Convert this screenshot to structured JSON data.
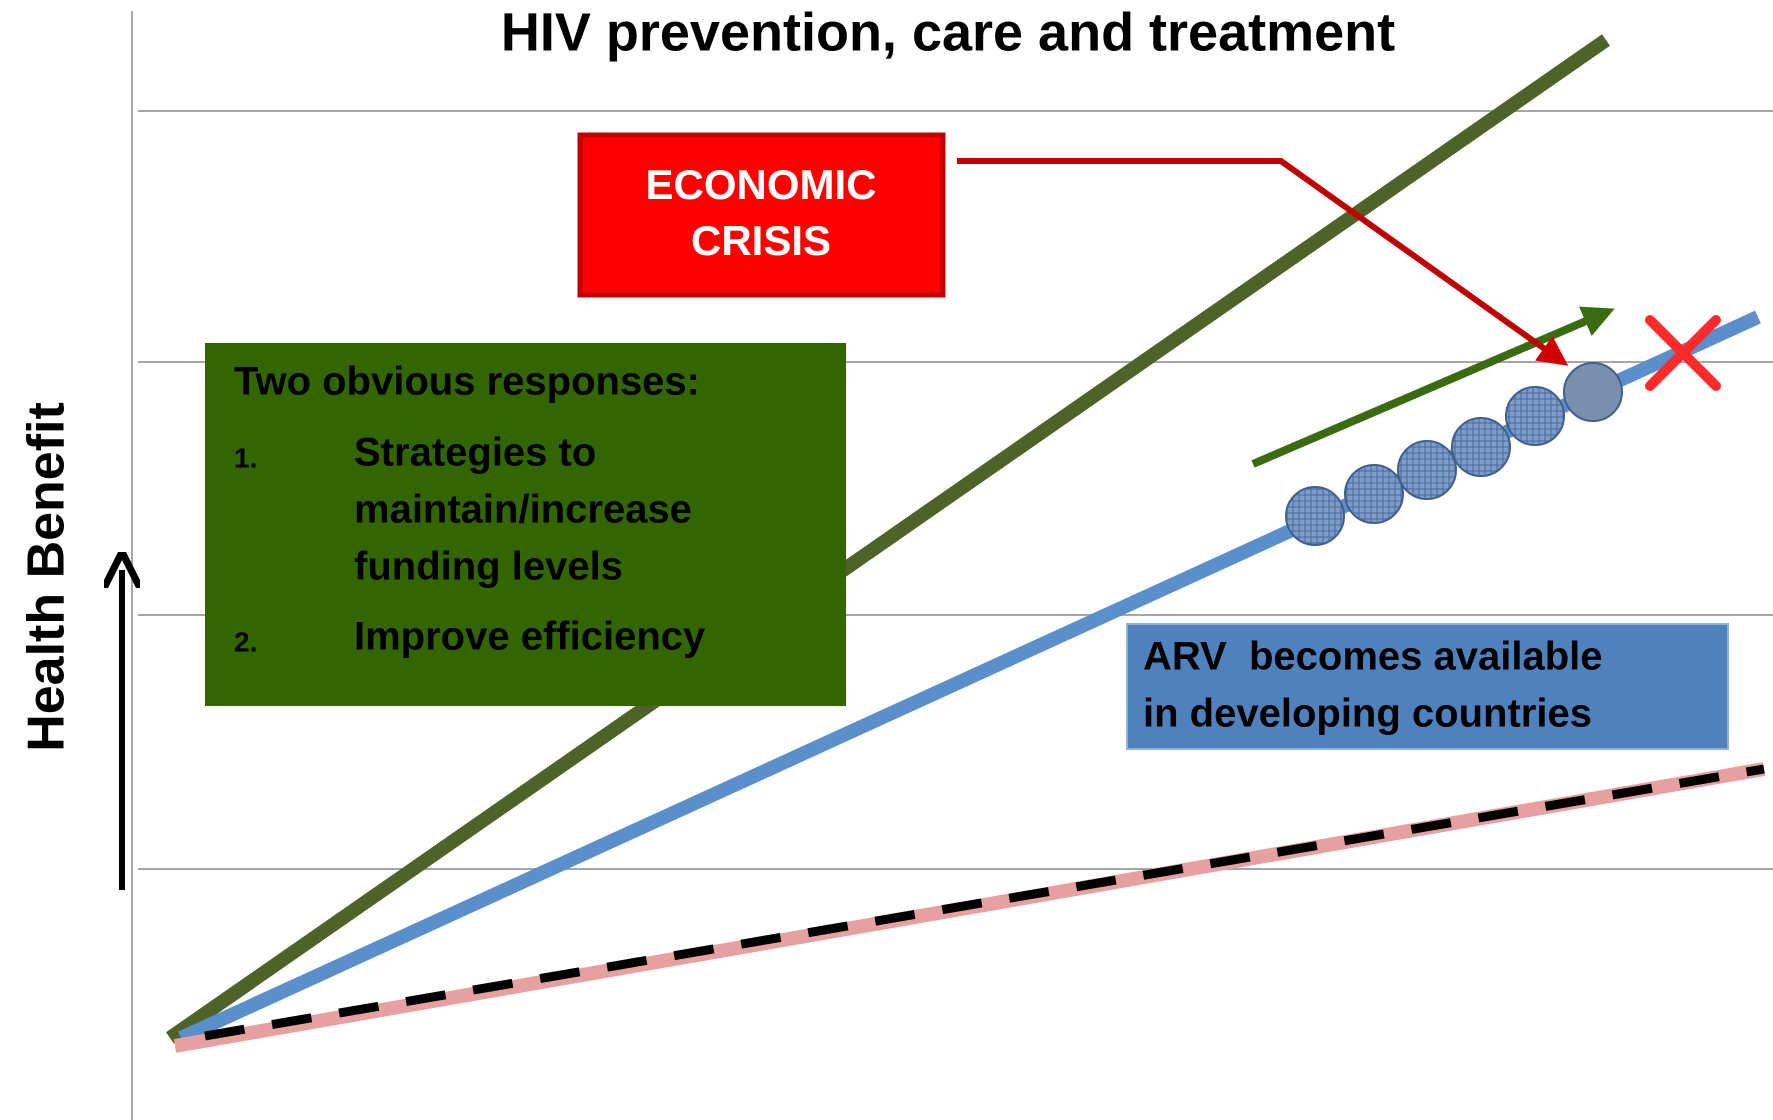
{
  "title": "HIV prevention, care and treatment",
  "y_axis_label": "Health Benefit",
  "crisis": {
    "lines": [
      "ECONOMIC",
      "CRISIS"
    ]
  },
  "responses": {
    "title": "Two obvious responses:",
    "items": [
      {
        "number": "1.",
        "lines": [
          "Strategies to",
          "maintain/increase",
          "funding levels"
        ]
      },
      {
        "number": "2.",
        "lines": [
          "Improve efficiency"
        ]
      }
    ]
  },
  "arv": {
    "lines": [
      "ARV  becomes available",
      "in developing countries"
    ]
  }
}
